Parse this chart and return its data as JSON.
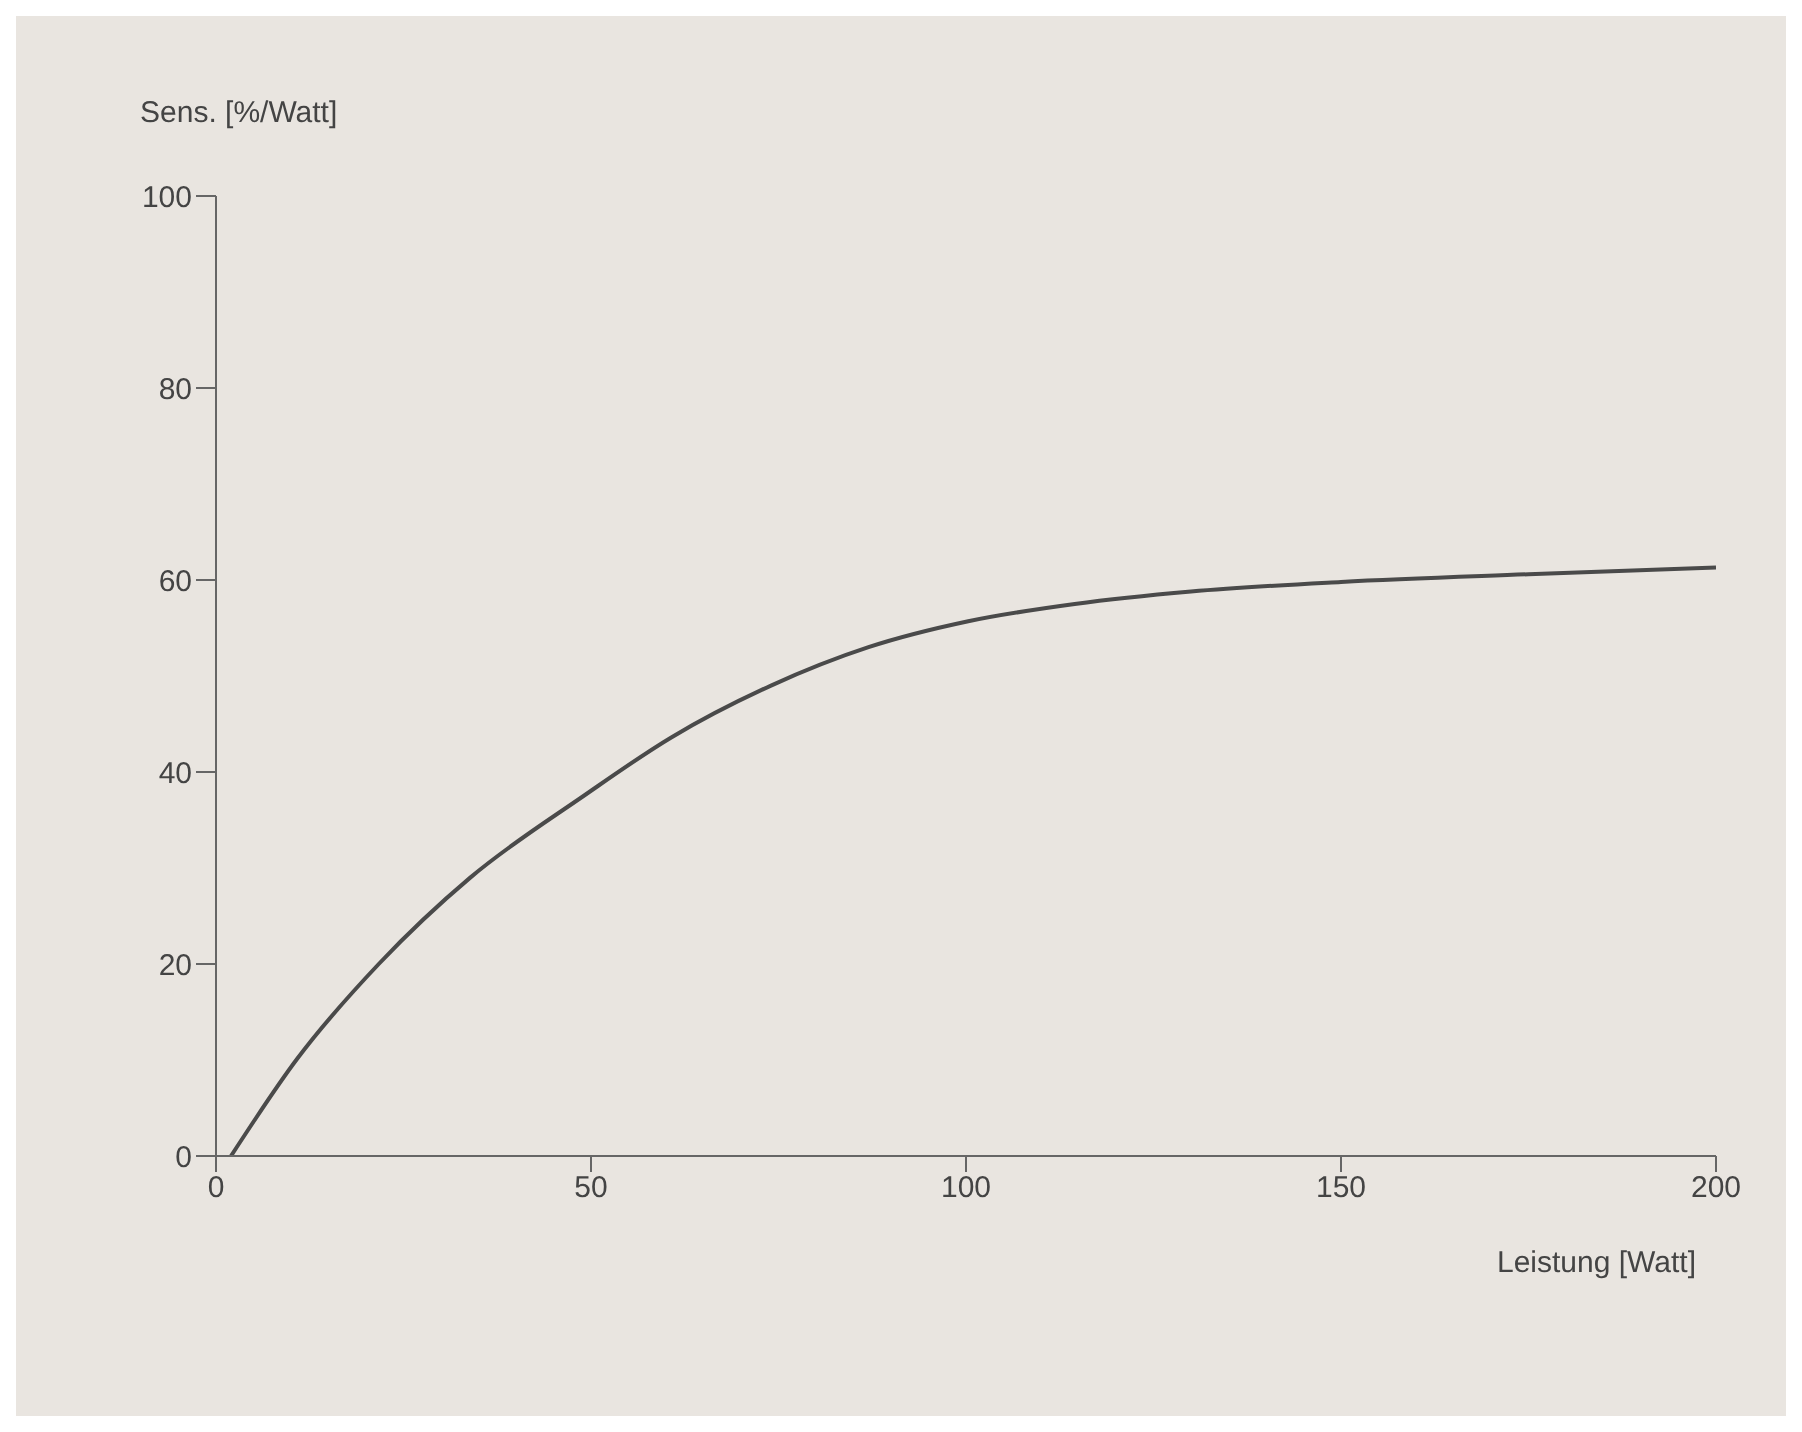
{
  "chart_data": {
    "type": "line",
    "xlabel": "Leistung [Watt]",
    "ylabel": "Sens. [%/Watt]",
    "x": [
      2,
      10.8,
      21.7,
      33.9,
      49,
      60.7,
      74,
      87,
      100.3,
      114.5,
      130,
      150,
      175,
      200
    ],
    "series": [
      {
        "color": "#4a4a4a",
        "values": [
          0,
          10.1,
          20,
          29,
          37.5,
          43.6,
          49,
          53,
          55.7,
          57.5,
          58.8,
          59.8,
          60.6,
          61.3
        ]
      }
    ],
    "xlim": [
      0,
      200
    ],
    "xticks": [
      0,
      50,
      100,
      150,
      200
    ],
    "ylim": [
      0,
      100
    ],
    "yticks": [
      0,
      20,
      40,
      60,
      80,
      100
    ],
    "grid": false,
    "legend": false,
    "marker": "none",
    "line_style": "solid"
  }
}
